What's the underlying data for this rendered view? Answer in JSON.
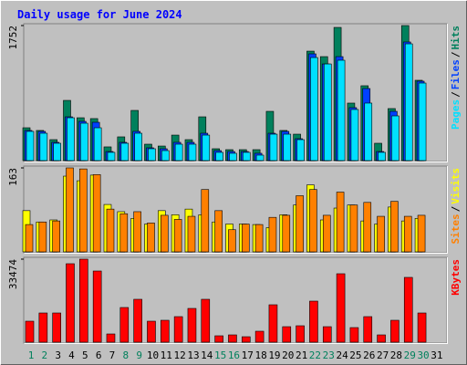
{
  "title": "Daily usage for June 2024",
  "chart_data": [
    {
      "type": "bar",
      "ylim": [
        0,
        1752
      ],
      "yticks": [
        1752
      ],
      "legend_separator": "/",
      "series": [
        {
          "name": "Hits",
          "color": "#00805c",
          "values": [
            426,
            391,
            272,
            781,
            556,
            545,
            178,
            308,
            651,
            213,
            189,
            331,
            272,
            568,
            154,
            142,
            142,
            142,
            639,
            391,
            343,
            1420,
            1349,
            1728,
            746,
            971,
            225,
            675,
            1752,
            1042,
            0
          ]
        },
        {
          "name": "Files",
          "color": "#0040ff",
          "values": [
            391,
            379,
            237,
            568,
            509,
            497,
            118,
            237,
            379,
            166,
            154,
            237,
            237,
            355,
            130,
            118,
            118,
            95,
            355,
            379,
            284,
            1385,
            1254,
            1349,
            687,
            935,
            118,
            639,
            1539,
            1030,
            0
          ]
        },
        {
          "name": "Pages",
          "color": "#00e0ff",
          "values": [
            379,
            355,
            225,
            556,
            485,
            426,
            107,
            225,
            355,
            154,
            130,
            213,
            213,
            331,
            107,
            95,
            107,
            71,
            343,
            343,
            272,
            1337,
            1254,
            1302,
            663,
            746,
            107,
            580,
            1515,
            1006,
            0
          ]
        }
      ]
    },
    {
      "type": "bar",
      "ylim": [
        0,
        163
      ],
      "yticks": [
        163
      ],
      "legend_separator": "/",
      "series": [
        {
          "name": "Visits",
          "color": "#ffff00",
          "values": [
            80,
            58,
            62,
            147,
            138,
            149,
            92,
            78,
            65,
            54,
            80,
            72,
            83,
            72,
            58,
            54,
            54,
            53,
            47,
            72,
            91,
            130,
            62,
            85,
            91,
            60,
            54,
            87,
            60,
            65,
            0
          ]
        },
        {
          "name": "Sites",
          "color": "#ff8000",
          "values": [
            53,
            58,
            60,
            163,
            161,
            150,
            83,
            74,
            78,
            56,
            71,
            63,
            69,
            121,
            80,
            43,
            54,
            53,
            67,
            71,
            109,
            121,
            71,
            116,
            91,
            96,
            69,
            98,
            69,
            71,
            0
          ]
        }
      ]
    },
    {
      "type": "bar",
      "ylim": [
        0,
        33474
      ],
      "yticks": [
        33474
      ],
      "series": [
        {
          "name": "KBytes",
          "color": "#ff0000",
          "values": [
            8460,
            11770,
            11770,
            31635,
            33474,
            28690,
            3310,
            13980,
            17290,
            8460,
            8830,
            10300,
            13610,
            17290,
            2575,
            2940,
            2200,
            4415,
            15080,
            6250,
            6620,
            16550,
            6250,
            27590,
            5885,
            10300,
            2940,
            8830,
            26120,
            11770,
            0
          ]
        }
      ],
      "categories": [
        "1",
        "2",
        "3",
        "4",
        "5",
        "6",
        "7",
        "8",
        "9",
        "10",
        "11",
        "12",
        "13",
        "14",
        "15",
        "16",
        "17",
        "18",
        "19",
        "20",
        "21",
        "22",
        "23",
        "24",
        "25",
        "26",
        "27",
        "28",
        "29",
        "30",
        "31"
      ],
      "category_colors": [
        "#00805c",
        "#00805c",
        "#000000",
        "#000000",
        "#000000",
        "#000000",
        "#000000",
        "#00805c",
        "#00805c",
        "#000000",
        "#000000",
        "#000000",
        "#000000",
        "#000000",
        "#00805c",
        "#00805c",
        "#000000",
        "#000000",
        "#000000",
        "#000000",
        "#000000",
        "#00805c",
        "#00805c",
        "#000000",
        "#000000",
        "#000000",
        "#000000",
        "#000000",
        "#00805c",
        "#00805c",
        "#000000"
      ]
    }
  ]
}
